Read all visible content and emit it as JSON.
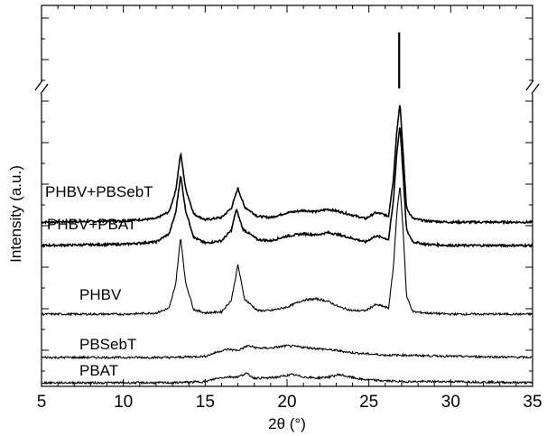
{
  "chart_data": {
    "type": "line",
    "title": "",
    "xlabel": "2θ (°)",
    "ylabel": "Intensity (a.u.)",
    "xlim": [
      5,
      35
    ],
    "xticks": [
      5,
      10,
      15,
      20,
      25,
      30,
      35
    ],
    "x_minor_step": 1,
    "y_axis_break": true,
    "y_tick_labels": false,
    "grid": false,
    "legend": "none (series labeled inline at left)",
    "series": [
      {
        "name": "PHBV+PBSebT",
        "color": "#000000",
        "x": [
          5,
          10,
          12,
          12.8,
          13.2,
          13.5,
          13.8,
          14.3,
          15,
          16,
          16.6,
          17.0,
          17.4,
          18.2,
          19,
          20,
          21,
          21.8,
          22.5,
          23.2,
          24,
          24.8,
          25.4,
          25.8,
          26.2,
          26.5,
          26.7,
          26.9,
          27.1,
          27.3,
          27.7,
          28.5,
          30,
          32,
          35
        ],
        "y": [
          0.23,
          0.24,
          0.26,
          0.32,
          0.5,
          0.82,
          0.52,
          0.3,
          0.25,
          0.27,
          0.35,
          0.52,
          0.36,
          0.28,
          0.27,
          0.31,
          0.33,
          0.32,
          0.34,
          0.32,
          0.29,
          0.26,
          0.31,
          0.3,
          0.28,
          0.6,
          1.0,
          1.25,
          0.8,
          0.35,
          0.26,
          0.24,
          0.23,
          0.23,
          0.23
        ]
      },
      {
        "name": "PHBV+PBAT",
        "color": "#000000",
        "x": [
          5,
          10,
          12,
          12.8,
          13.2,
          13.5,
          13.8,
          14.3,
          15,
          16,
          16.6,
          16.9,
          17.3,
          18.2,
          19,
          20,
          21,
          21.8,
          22.5,
          23.2,
          24,
          24.8,
          25.4,
          25.8,
          26.2,
          26.5,
          26.7,
          26.9,
          27.1,
          27.3,
          27.7,
          28.5,
          30,
          32,
          35
        ],
        "y": [
          0.17,
          0.18,
          0.2,
          0.27,
          0.45,
          0.77,
          0.47,
          0.24,
          0.19,
          0.21,
          0.3,
          0.48,
          0.31,
          0.22,
          0.21,
          0.25,
          0.27,
          0.26,
          0.28,
          0.26,
          0.23,
          0.2,
          0.25,
          0.24,
          0.22,
          0.55,
          0.95,
          1.2,
          0.75,
          0.3,
          0.2,
          0.18,
          0.17,
          0.17,
          0.17
        ]
      },
      {
        "name": "PHBV",
        "color": "#000000",
        "x": [
          5,
          10,
          12,
          12.8,
          13.2,
          13.5,
          13.8,
          14.3,
          15,
          16,
          16.6,
          17.0,
          17.4,
          18.2,
          19,
          20,
          21,
          21.8,
          22.5,
          23.2,
          24,
          24.8,
          25.4,
          25.8,
          26.2,
          26.5,
          26.7,
          26.9,
          27.1,
          27.3,
          27.7,
          28.5,
          30,
          32,
          35
        ],
        "y": [
          0.0,
          0.0,
          0.01,
          0.05,
          0.26,
          0.66,
          0.27,
          0.04,
          0.01,
          0.02,
          0.12,
          0.42,
          0.13,
          0.03,
          0.03,
          0.06,
          0.12,
          0.13,
          0.11,
          0.06,
          0.03,
          0.03,
          0.08,
          0.07,
          0.05,
          0.4,
          0.85,
          1.1,
          0.7,
          0.15,
          0.02,
          0.01,
          0.0,
          0.0,
          0.0
        ]
      },
      {
        "name": "PBSebT",
        "color": "#000000",
        "x": [
          5,
          10,
          13,
          15,
          15.8,
          16.4,
          17,
          17.6,
          18.2,
          19,
          20,
          20.8,
          21.5,
          22.3,
          23,
          24,
          25,
          26,
          27,
          30,
          35
        ],
        "y": [
          0.0,
          0.0,
          0.0,
          0.01,
          0.05,
          0.07,
          0.06,
          0.1,
          0.08,
          0.08,
          0.1,
          0.09,
          0.08,
          0.07,
          0.06,
          0.04,
          0.03,
          0.02,
          0.02,
          0.01,
          0.0
        ]
      },
      {
        "name": "PBAT",
        "color": "#000000",
        "x": [
          5,
          10,
          13,
          15,
          15.8,
          16.4,
          17,
          17.5,
          18,
          18.8,
          19.5,
          20.3,
          21,
          21.8,
          22.6,
          23.2,
          23.8,
          24.5,
          25.5,
          27,
          30,
          35
        ],
        "y": [
          0.0,
          0.0,
          0.0,
          0.01,
          0.04,
          0.05,
          0.05,
          0.08,
          0.04,
          0.04,
          0.05,
          0.07,
          0.05,
          0.04,
          0.05,
          0.07,
          0.05,
          0.03,
          0.02,
          0.01,
          0.01,
          0.0
        ]
      }
    ]
  }
}
